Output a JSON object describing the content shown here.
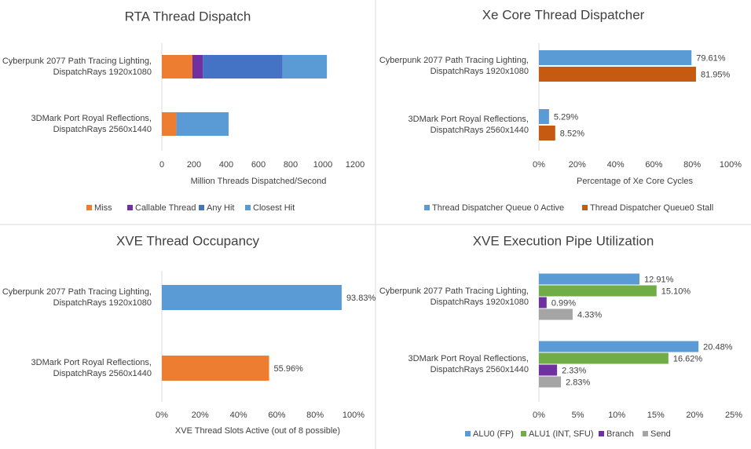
{
  "colors": {
    "blue": "#5b9bd5",
    "orange": "#ed7d31",
    "purple": "#7030a0",
    "darkblue": "#4472c4",
    "rust": "#c55a11",
    "green": "#70ad47",
    "gray": "#a5a5a5",
    "text": "#404040",
    "title": "#404040",
    "axis": "#d9d9d9"
  },
  "chart_data": [
    {
      "type": "bar",
      "orientation": "horizontal",
      "stacked": true,
      "title": "RTA Thread Dispatch",
      "xlabel": "Million Threads Dispatched/Second",
      "xlim": [
        0,
        1200
      ],
      "ticks": [
        "0",
        "200",
        "400",
        "600",
        "800",
        "1000",
        "1200"
      ],
      "categories": [
        [
          "Cyberpunk 2077 Path Tracing Lighting,",
          "DispatchRays 1920x1080"
        ],
        [
          "3DMark Port Royal Reflections,",
          "DispatchRays 2560x1440"
        ]
      ],
      "series": [
        {
          "name": "Miss",
          "color": "#ed7d31",
          "values": [
            190,
            90
          ]
        },
        {
          "name": "Callable Thread",
          "color": "#7030a0",
          "values": [
            65,
            0
          ]
        },
        {
          "name": "Any Hit",
          "color": "#4472c4",
          "values": [
            495,
            0
          ]
        },
        {
          "name": "Closest Hit",
          "color": "#5b9bd5",
          "values": [
            275,
            325
          ]
        }
      ],
      "legend": "bottom"
    },
    {
      "type": "bar",
      "orientation": "horizontal",
      "stacked": false,
      "title": "Xe Core Thread Dispatcher",
      "xlabel": "Percentage of Xe Core Cycles",
      "xlim": [
        0,
        100
      ],
      "ticks": [
        "0%",
        "20%",
        "40%",
        "60%",
        "80%",
        "100%"
      ],
      "categories": [
        [
          "Cyberpunk 2077 Path Tracing Lighting,",
          "DispatchRays 1920x1080"
        ],
        [
          "3DMark Port Royal Reflections,",
          "DispatchRays 2560x1440"
        ]
      ],
      "series": [
        {
          "name": "Thread Dispatcher Queue 0 Active",
          "color": "#5b9bd5",
          "values": [
            79.61,
            5.29
          ],
          "labels": [
            "79.61%",
            "5.29%"
          ]
        },
        {
          "name": "Thread Dispatcher Queue0 Stall",
          "color": "#c55a11",
          "values": [
            81.95,
            8.52
          ],
          "labels": [
            "81.95%",
            "8.52%"
          ]
        }
      ],
      "legend": "bottom"
    },
    {
      "type": "bar",
      "orientation": "horizontal",
      "stacked": false,
      "title": "XVE Thread Occupancy",
      "xlabel": "XVE Thread Slots Active (out of 8 possible)",
      "xlim": [
        0,
        100
      ],
      "ticks": [
        "0%",
        "20%",
        "40%",
        "60%",
        "80%",
        "100%"
      ],
      "categories": [
        [
          "Cyberpunk 2077 Path Tracing Lighting,",
          "DispatchRays 1920x1080"
        ],
        [
          "3DMark Port Royal Reflections,",
          "DispatchRays 2560x1440"
        ]
      ],
      "series": [
        {
          "name": "",
          "colors": [
            "#5b9bd5",
            "#ed7d31"
          ],
          "values": [
            93.83,
            55.96
          ],
          "labels": [
            "93.83%",
            "55.96%"
          ]
        }
      ],
      "legend": "none"
    },
    {
      "type": "bar",
      "orientation": "horizontal",
      "stacked": false,
      "title": "XVE Execution Pipe Utilization",
      "xlabel": "",
      "xlim": [
        0,
        25
      ],
      "ticks": [
        "0%",
        "5%",
        "10%",
        "15%",
        "20%",
        "25%"
      ],
      "categories": [
        [
          "Cyberpunk 2077 Path Tracing Lighting,",
          "DispatchRays 1920x1080"
        ],
        [
          "3DMark Port Royal Reflections,",
          "DispatchRays 2560x1440"
        ]
      ],
      "series": [
        {
          "name": "ALU0 (FP)",
          "color": "#5b9bd5",
          "values": [
            12.91,
            20.48
          ],
          "labels": [
            "12.91%",
            "20.48%"
          ]
        },
        {
          "name": "ALU1 (INT, SFU)",
          "color": "#70ad47",
          "values": [
            15.1,
            16.62
          ],
          "labels": [
            "15.10%",
            "16.62%"
          ]
        },
        {
          "name": "Branch",
          "color": "#7030a0",
          "values": [
            0.99,
            2.33
          ],
          "labels": [
            "0.99%",
            "2.33%"
          ]
        },
        {
          "name": "Send",
          "color": "#a5a5a5",
          "values": [
            4.33,
            2.83
          ],
          "labels": [
            "4.33%",
            "2.83%"
          ]
        }
      ],
      "legend": "bottom"
    }
  ]
}
